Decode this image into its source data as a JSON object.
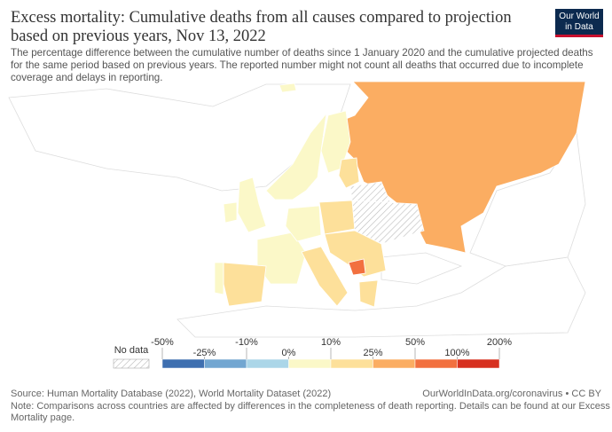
{
  "header": {
    "title_lines": [
      "Excess mortality: Cumulative deaths from all causes compared to projection",
      "based on previous years, Nov 13, 2022"
    ],
    "subtitle_lines": [
      "The percentage difference between the cumulative number of deaths since 1 January 2020 and the cumulative projected deaths",
      "for the same period based on previous years. The reported number might not count all deaths that occurred due to incomplete",
      "coverage and delays in reporting."
    ],
    "logo_lines": [
      "Our World",
      "in Data"
    ]
  },
  "legend": {
    "no_data": "No data",
    "ticks": [
      "-50%",
      "-25%",
      "-10%",
      "0%",
      "10%",
      "25%",
      "50%",
      "100%",
      "200%"
    ],
    "colors": [
      "#3e6fb0",
      "#72a6d1",
      "#abd6e8",
      "#fbf8c8",
      "#fde09a",
      "#fbad62",
      "#f2703f",
      "#d7301f"
    ]
  },
  "footer": {
    "source": "Source: Human Mortality Database (2022), World Mortality Dataset (2022)",
    "url": "OurWorldInData.org/coronavirus • CC BY",
    "note_lines": [
      "Note: Comparisons across countries are affected by differences in the completeness of death reporting. Details can be found at our Excess",
      "Mortality page."
    ]
  }
}
